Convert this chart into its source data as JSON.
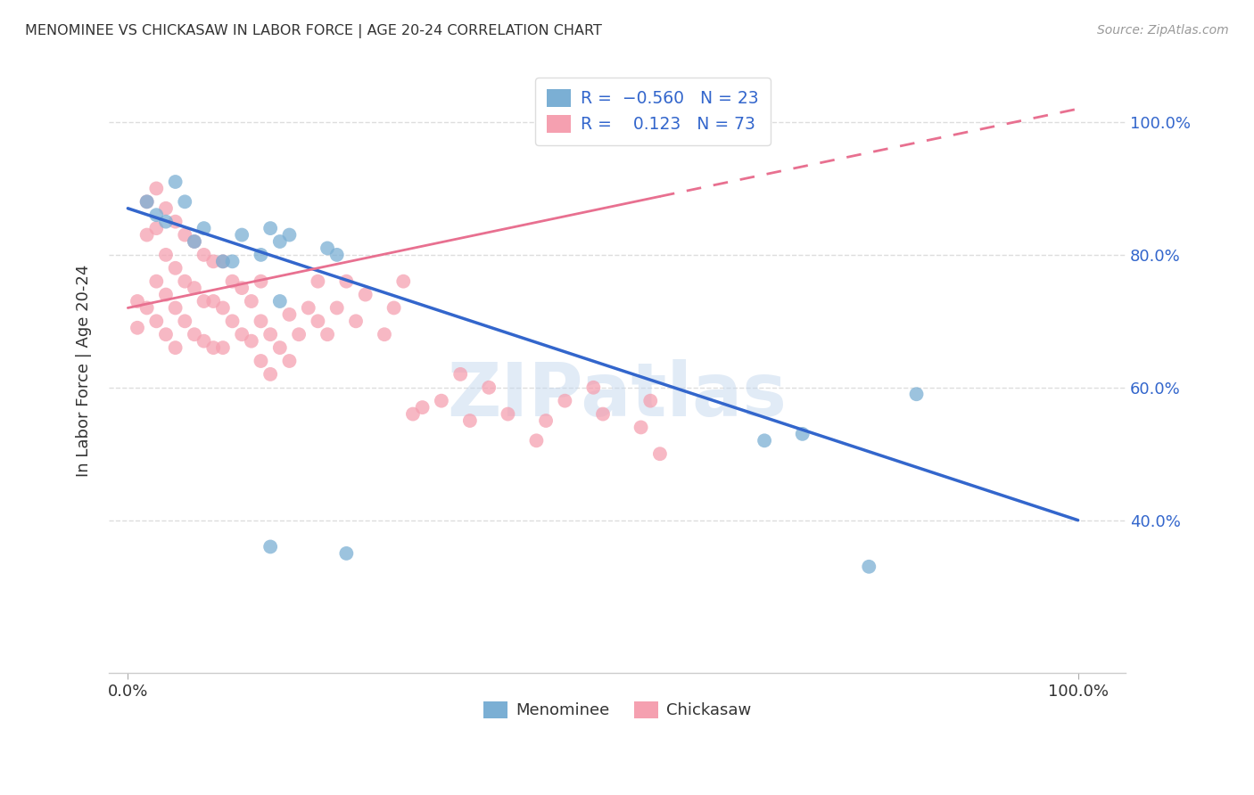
{
  "title": "MENOMINEE VS CHICKASAW IN LABOR FORCE | AGE 20-24 CORRELATION CHART",
  "source": "Source: ZipAtlas.com",
  "ylabel": "In Labor Force | Age 20-24",
  "background_color": "#FFFFFF",
  "menominee_color": "#7BAFD4",
  "chickasaw_color": "#F5A0B0",
  "menominee_line_color": "#3366CC",
  "chickasaw_line_color": "#E87090",
  "watermark_color": "#C5D8EE",
  "grid_color": "#DDDDDD",
  "menominee_R": -0.56,
  "menominee_N": 23,
  "chickasaw_R": 0.123,
  "chickasaw_N": 73,
  "men_line_x0": 0.0,
  "men_line_y0": 0.87,
  "men_line_x1": 1.0,
  "men_line_y1": 0.4,
  "chi_line_x0": 0.0,
  "chi_line_y0": 0.72,
  "chi_line_x1": 1.0,
  "chi_line_y1": 1.02,
  "xlim_min": -0.02,
  "xlim_max": 1.05,
  "ylim_min": 0.17,
  "ylim_max": 1.08,
  "yticks": [
    0.4,
    0.6,
    0.8,
    1.0
  ],
  "ytick_labels": [
    "40.0%",
    "60.0%",
    "80.0%",
    "100.0%"
  ],
  "xtick_labels": [
    "0.0%",
    "100.0%"
  ],
  "xtick_pos": [
    0.0,
    1.0
  ],
  "menominee_x": [
    0.02,
    0.03,
    0.04,
    0.05,
    0.06,
    0.07,
    0.08,
    0.1,
    0.11,
    0.12,
    0.14,
    0.15,
    0.16,
    0.17,
    0.21,
    0.22,
    0.23,
    0.15,
    0.16,
    0.67,
    0.71,
    0.78,
    0.83
  ],
  "menominee_y": [
    0.88,
    0.86,
    0.85,
    0.91,
    0.88,
    0.82,
    0.84,
    0.79,
    0.79,
    0.83,
    0.8,
    0.84,
    0.82,
    0.83,
    0.81,
    0.8,
    0.35,
    0.36,
    0.73,
    0.52,
    0.53,
    0.33,
    0.59
  ],
  "chickasaw_x": [
    0.01,
    0.01,
    0.02,
    0.02,
    0.02,
    0.03,
    0.03,
    0.03,
    0.03,
    0.04,
    0.04,
    0.04,
    0.04,
    0.05,
    0.05,
    0.05,
    0.05,
    0.06,
    0.06,
    0.06,
    0.07,
    0.07,
    0.07,
    0.08,
    0.08,
    0.08,
    0.09,
    0.09,
    0.09,
    0.1,
    0.1,
    0.1,
    0.11,
    0.11,
    0.12,
    0.12,
    0.13,
    0.13,
    0.14,
    0.14,
    0.14,
    0.15,
    0.15,
    0.16,
    0.17,
    0.17,
    0.18,
    0.19,
    0.2,
    0.2,
    0.21,
    0.22,
    0.23,
    0.24,
    0.25,
    0.27,
    0.28,
    0.29,
    0.3,
    0.31,
    0.33,
    0.35,
    0.36,
    0.38,
    0.4,
    0.43,
    0.44,
    0.46,
    0.49,
    0.5,
    0.54,
    0.55,
    0.56
  ],
  "chickasaw_y": [
    0.73,
    0.69,
    0.88,
    0.83,
    0.72,
    0.9,
    0.84,
    0.76,
    0.7,
    0.87,
    0.8,
    0.74,
    0.68,
    0.85,
    0.78,
    0.72,
    0.66,
    0.83,
    0.76,
    0.7,
    0.82,
    0.75,
    0.68,
    0.8,
    0.73,
    0.67,
    0.79,
    0.73,
    0.66,
    0.79,
    0.72,
    0.66,
    0.76,
    0.7,
    0.75,
    0.68,
    0.73,
    0.67,
    0.7,
    0.64,
    0.76,
    0.68,
    0.62,
    0.66,
    0.71,
    0.64,
    0.68,
    0.72,
    0.76,
    0.7,
    0.68,
    0.72,
    0.76,
    0.7,
    0.74,
    0.68,
    0.72,
    0.76,
    0.56,
    0.57,
    0.58,
    0.62,
    0.55,
    0.6,
    0.56,
    0.52,
    0.55,
    0.58,
    0.6,
    0.56,
    0.54,
    0.58,
    0.5
  ]
}
